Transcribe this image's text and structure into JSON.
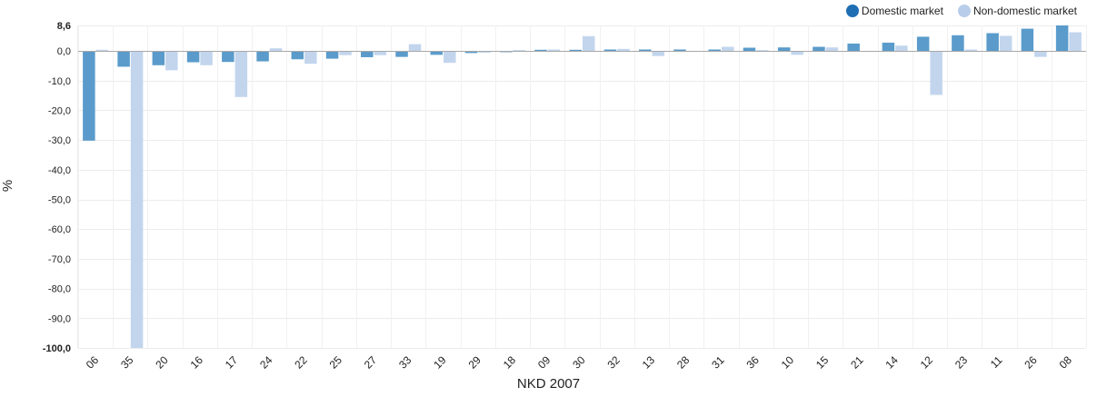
{
  "chart_data": {
    "type": "bar",
    "xlabel": "NKD 2007",
    "ylabel": "%",
    "ylim": [
      -100,
      8.6
    ],
    "yticks": [
      "8,6",
      "0,0",
      "-10,0",
      "-20,0",
      "-30,0",
      "-40,0",
      "-50,0",
      "-60,0",
      "-70,0",
      "-80,0",
      "-90,0",
      "-100,0"
    ],
    "ytick_values": [
      8.6,
      0,
      -10,
      -20,
      -30,
      -40,
      -50,
      -60,
      -70,
      -80,
      -90,
      -100
    ],
    "grid": true,
    "legend_position": "top-right",
    "categories": [
      "06",
      "35",
      "20",
      "16",
      "17",
      "24",
      "22",
      "25",
      "27",
      "33",
      "19",
      "29",
      "18",
      "09",
      "30",
      "32",
      "13",
      "28",
      "31",
      "36",
      "10",
      "15",
      "21",
      "14",
      "12",
      "23",
      "11",
      "26",
      "08"
    ],
    "series": [
      {
        "name": "Domestic market",
        "color": "#5a9bcb",
        "legend_color": "#1f6eb3",
        "values": [
          -30.2,
          -5.3,
          -4.8,
          -3.8,
          -3.7,
          -3.5,
          -2.8,
          -2.6,
          -2.1,
          -2.0,
          -1.3,
          -0.7,
          -0.4,
          0.4,
          0.4,
          0.5,
          0.5,
          0.5,
          0.5,
          1.1,
          1.2,
          1.4,
          2.5,
          2.8,
          4.8,
          5.3,
          6.0,
          7.5,
          8.6
        ]
      },
      {
        "name": "Non-domestic market",
        "color": "#c2d5ed",
        "legend_color": "#b8cde9",
        "values": [
          0.4,
          -100.0,
          -6.5,
          -4.8,
          -15.5,
          0.9,
          -4.3,
          -1.4,
          -1.4,
          2.3,
          -4.0,
          -0.6,
          0.3,
          0.5,
          5.0,
          0.7,
          -1.7,
          -0.3,
          1.4,
          0.3,
          -1.3,
          1.2,
          -0.3,
          1.8,
          -14.8,
          0.5,
          5.1,
          -2.0,
          6.3
        ]
      }
    ]
  }
}
